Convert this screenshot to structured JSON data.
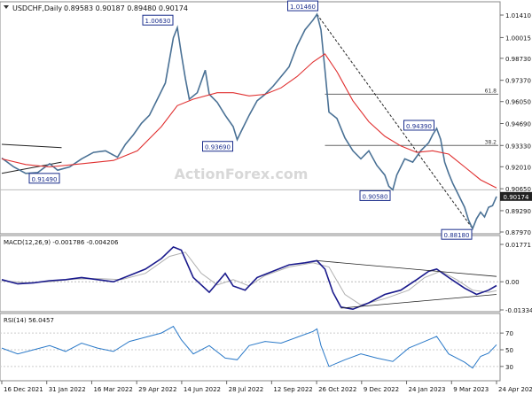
{
  "header": {
    "title": "USDCHF,Daily",
    "ohlc": "0.89583 0.90187 0.89480 0.90174"
  },
  "watermark": "ActionForex.com",
  "colors": {
    "price": "#4a7195",
    "ma": "#e03030",
    "trend": "#222222",
    "level": "#666666",
    "macd": "#1a1a8c",
    "signal": "#b0b0b0",
    "rsi": "#2a79c8",
    "label_border": "#1a2d8c",
    "current_tag": "#222222"
  },
  "chart_data": [
    {
      "type": "line",
      "panel": "price",
      "title": "USDCHF,Daily",
      "y_ticks": [
        "1.01410",
        "1.00015",
        "0.98730",
        "0.97370",
        "0.96050",
        "0.94690",
        "0.93330",
        "0.92010",
        "0.90650",
        "0.89290",
        "0.87970"
      ],
      "ylim": [
        0.8797,
        1.0141
      ],
      "x_ticks": [
        "16 Dec 2021",
        "31 Jan 2022",
        "16 Mar 2022",
        "29 Apr 2022",
        "14 Jun 2022",
        "28 Jul 2022",
        "12 Sep 2022",
        "26 Oct 2022",
        "9 Dec 2022",
        "24 Jan 2023",
        "9 Mar 2023",
        "24 Apr 2023"
      ],
      "current_price": "0.90174",
      "price_path": [
        [
          0,
          0.9255
        ],
        [
          3,
          0.92
        ],
        [
          6,
          0.916
        ],
        [
          9,
          0.9165
        ],
        [
          12,
          0.922
        ],
        [
          14,
          0.918
        ],
        [
          17,
          0.92
        ],
        [
          20,
          0.925
        ],
        [
          23,
          0.929
        ],
        [
          26,
          0.93
        ],
        [
          29,
          0.926
        ],
        [
          31,
          0.934
        ],
        [
          33,
          0.94
        ],
        [
          35,
          0.947
        ],
        [
          37,
          0.952
        ],
        [
          39,
          0.962
        ],
        [
          41,
          0.972
        ],
        [
          42,
          0.986
        ],
        [
          43,
          1.0
        ],
        [
          44,
          1.0063
        ],
        [
          45,
          0.99
        ],
        [
          46,
          0.975
        ],
        [
          47,
          0.962
        ],
        [
          49,
          0.966
        ],
        [
          51,
          0.98
        ],
        [
          52,
          0.965
        ],
        [
          54,
          0.96
        ],
        [
          56,
          0.952
        ],
        [
          58,
          0.945
        ],
        [
          59,
          0.9369
        ],
        [
          60,
          0.942
        ],
        [
          62,
          0.952
        ],
        [
          64,
          0.961
        ],
        [
          66,
          0.965
        ],
        [
          68,
          0.97
        ],
        [
          70,
          0.976
        ],
        [
          72,
          0.982
        ],
        [
          74,
          0.995
        ],
        [
          76,
          1.005
        ],
        [
          78,
          1.011
        ],
        [
          79,
          1.0146
        ],
        [
          80,
          1.005
        ],
        [
          81,
          0.98
        ],
        [
          82,
          0.954
        ],
        [
          84,
          0.95
        ],
        [
          86,
          0.938
        ],
        [
          88,
          0.93
        ],
        [
          90,
          0.925
        ],
        [
          92,
          0.93
        ],
        [
          94,
          0.921
        ],
        [
          96,
          0.915
        ],
        [
          97,
          0.908
        ],
        [
          98,
          0.9058
        ],
        [
          99,
          0.915
        ],
        [
          101,
          0.925
        ],
        [
          103,
          0.923
        ],
        [
          105,
          0.93
        ],
        [
          107,
          0.935
        ],
        [
          108,
          0.94
        ],
        [
          109,
          0.9439
        ],
        [
          110,
          0.937
        ],
        [
          111,
          0.923
        ],
        [
          112,
          0.916
        ],
        [
          113,
          0.91
        ],
        [
          114,
          0.905
        ],
        [
          115,
          0.9
        ],
        [
          116,
          0.895
        ],
        [
          117,
          0.887
        ],
        [
          118,
          0.8818
        ],
        [
          119,
          0.888
        ],
        [
          120,
          0.892
        ],
        [
          121,
          0.889
        ],
        [
          122,
          0.895
        ],
        [
          123,
          0.896
        ],
        [
          124,
          0.9017
        ]
      ],
      "ma_path": [
        [
          0,
          0.925
        ],
        [
          6,
          0.9215
        ],
        [
          12,
          0.92
        ],
        [
          20,
          0.922
        ],
        [
          28,
          0.924
        ],
        [
          34,
          0.93
        ],
        [
          40,
          0.945
        ],
        [
          44,
          0.958
        ],
        [
          48,
          0.962
        ],
        [
          54,
          0.966
        ],
        [
          58,
          0.966
        ],
        [
          62,
          0.964
        ],
        [
          66,
          0.965
        ],
        [
          70,
          0.969
        ],
        [
          74,
          0.976
        ],
        [
          78,
          0.985
        ],
        [
          81,
          0.99
        ],
        [
          84,
          0.979
        ],
        [
          88,
          0.961
        ],
        [
          92,
          0.948
        ],
        [
          96,
          0.939
        ],
        [
          100,
          0.933
        ],
        [
          104,
          0.929
        ],
        [
          108,
          0.93
        ],
        [
          112,
          0.928
        ],
        [
          116,
          0.92
        ],
        [
          120,
          0.912
        ],
        [
          124,
          0.907
        ]
      ],
      "annotations": [
        {
          "label": "1.00630",
          "x": 44,
          "y": 1.0063
        },
        {
          "label": "1.01460",
          "x": 79,
          "y": 1.0146
        },
        {
          "label": "0.93690",
          "x": 59,
          "y": 0.9369
        },
        {
          "label": "0.91490",
          "x": 12,
          "y": 0.9149
        },
        {
          "label": "0.90580",
          "x": 98,
          "y": 0.9058
        },
        {
          "label": "0.94390",
          "x": 109,
          "y": 0.9439
        },
        {
          "label": "0.88180",
          "x": 118,
          "y": 0.8818
        }
      ],
      "fib_levels": [
        {
          "label": "61.8",
          "value": 0.9651
        },
        {
          "label": "38.2",
          "value": 0.9333
        }
      ],
      "horizontal_line": 0.9058,
      "trendline": [
        [
          79,
          1.0146
        ],
        [
          118,
          0.8818
        ]
      ],
      "triangle": {
        "upper": [
          [
            0,
            0.934
          ],
          [
            15,
            0.932
          ]
        ],
        "lower": [
          [
            0,
            0.916
          ],
          [
            15,
            0.923
          ]
        ]
      }
    },
    {
      "type": "line",
      "panel": "macd",
      "title": "MACD(12,26,9) -0.001786 -0.004206",
      "y_ticks": [
        "0.01771",
        "0.00",
        "-0.01334"
      ],
      "ylim": [
        -0.01334,
        0.01771
      ],
      "macd_path": [
        [
          0,
          0.001
        ],
        [
          4,
          -0.001
        ],
        [
          8,
          -0.0005
        ],
        [
          12,
          0.0005
        ],
        [
          16,
          0.001
        ],
        [
          20,
          0.002
        ],
        [
          24,
          0.001
        ],
        [
          28,
          0.0
        ],
        [
          32,
          0.003
        ],
        [
          36,
          0.006
        ],
        [
          40,
          0.011
        ],
        [
          43,
          0.0165
        ],
        [
          45,
          0.015
        ],
        [
          48,
          0.002
        ],
        [
          52,
          -0.005
        ],
        [
          56,
          0.004
        ],
        [
          58,
          -0.002
        ],
        [
          61,
          -0.004
        ],
        [
          64,
          0.002
        ],
        [
          68,
          0.005
        ],
        [
          72,
          0.008
        ],
        [
          76,
          0.009
        ],
        [
          79,
          0.01
        ],
        [
          81,
          0.006
        ],
        [
          83,
          -0.005
        ],
        [
          85,
          -0.012
        ],
        [
          88,
          -0.013
        ],
        [
          92,
          -0.01
        ],
        [
          96,
          -0.006
        ],
        [
          100,
          -0.004
        ],
        [
          104,
          0.001
        ],
        [
          107,
          0.005
        ],
        [
          109,
          0.006
        ],
        [
          112,
          0.002
        ],
        [
          116,
          -0.003
        ],
        [
          119,
          -0.006
        ],
        [
          122,
          -0.004
        ],
        [
          124,
          -0.0018
        ]
      ],
      "signal_path": [
        [
          0,
          0.0005
        ],
        [
          6,
          -0.0005
        ],
        [
          12,
          0.0
        ],
        [
          18,
          0.0012
        ],
        [
          24,
          0.0015
        ],
        [
          30,
          0.001
        ],
        [
          36,
          0.004
        ],
        [
          42,
          0.012
        ],
        [
          46,
          0.014
        ],
        [
          50,
          0.004
        ],
        [
          54,
          -0.0015
        ],
        [
          58,
          0.001
        ],
        [
          62,
          -0.002
        ],
        [
          66,
          0.003
        ],
        [
          72,
          0.007
        ],
        [
          78,
          0.009
        ],
        [
          82,
          0.007
        ],
        [
          86,
          -0.006
        ],
        [
          90,
          -0.011
        ],
        [
          96,
          -0.008
        ],
        [
          102,
          -0.004
        ],
        [
          106,
          0.002
        ],
        [
          110,
          0.005
        ],
        [
          114,
          0.001
        ],
        [
          118,
          -0.004
        ],
        [
          122,
          -0.005
        ],
        [
          124,
          -0.0042
        ]
      ],
      "trendlines": [
        [
          [
            79,
            0.01
          ],
          [
            124,
            0.0025
          ]
        ],
        [
          [
            85,
            -0.0125
          ],
          [
            124,
            -0.006
          ]
        ]
      ]
    },
    {
      "type": "line",
      "panel": "rsi",
      "title": "RSI(14) 56.0457",
      "y_ticks": [
        "70",
        "50",
        "30"
      ],
      "ylim": [
        15,
        85
      ],
      "rsi_path": [
        [
          0,
          52
        ],
        [
          4,
          45
        ],
        [
          8,
          50
        ],
        [
          12,
          55
        ],
        [
          16,
          48
        ],
        [
          20,
          58
        ],
        [
          24,
          52
        ],
        [
          28,
          48
        ],
        [
          32,
          60
        ],
        [
          36,
          65
        ],
        [
          40,
          70
        ],
        [
          43,
          78
        ],
        [
          45,
          62
        ],
        [
          48,
          45
        ],
        [
          52,
          55
        ],
        [
          56,
          40
        ],
        [
          59,
          38
        ],
        [
          62,
          55
        ],
        [
          66,
          60
        ],
        [
          70,
          58
        ],
        [
          74,
          65
        ],
        [
          78,
          72
        ],
        [
          79,
          75
        ],
        [
          80,
          55
        ],
        [
          82,
          30
        ],
        [
          86,
          38
        ],
        [
          90,
          45
        ],
        [
          94,
          40
        ],
        [
          98,
          36
        ],
        [
          102,
          52
        ],
        [
          106,
          60
        ],
        [
          109,
          66
        ],
        [
          112,
          45
        ],
        [
          116,
          35
        ],
        [
          118,
          28
        ],
        [
          120,
          42
        ],
        [
          122,
          46
        ],
        [
          124,
          56
        ]
      ]
    }
  ]
}
